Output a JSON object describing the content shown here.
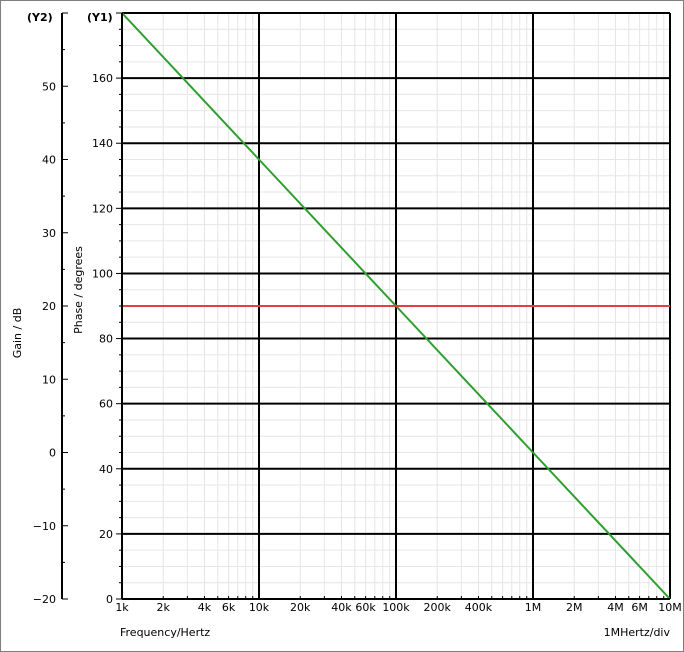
{
  "chart_data": {
    "type": "line",
    "title": "",
    "xlabel": "Frequency/Hertz",
    "x_scale": "log",
    "x_range_hz": [
      1000,
      10000000
    ],
    "x_tick_labels": [
      "1k",
      "2k",
      "4k",
      "6k",
      "10k",
      "20k",
      "40k",
      "60k",
      "100k",
      "200k",
      "400k",
      "1M",
      "2M",
      "4M",
      "6M",
      "10M"
    ],
    "x_tick_values": [
      1000,
      2000,
      4000,
      6000,
      10000,
      20000,
      40000,
      60000,
      100000,
      200000,
      400000,
      1000000,
      2000000,
      4000000,
      6000000,
      10000000
    ],
    "x_div_label": "1MHertz/div",
    "y1": {
      "axis_tag": "(Y1)",
      "label": "Phase / degrees",
      "range": [
        0,
        180
      ],
      "ticks": [
        0,
        20,
        40,
        60,
        80,
        100,
        120,
        140,
        160
      ]
    },
    "y2": {
      "axis_tag": "(Y2)",
      "label": "Gain / dB",
      "range": [
        -20,
        60
      ],
      "ticks": [
        -20,
        -10,
        0,
        10,
        20,
        30,
        40,
        50
      ]
    },
    "series": [
      {
        "axis": "y2",
        "color": "#2e9e2e",
        "x": [
          1000,
          10000,
          100000,
          1000000,
          10000000
        ],
        "y": [
          60,
          40,
          20,
          0,
          -20
        ]
      },
      {
        "axis": "y1",
        "color": "#e04040",
        "x": [
          1000,
          10000000
        ],
        "y": [
          90,
          90
        ]
      }
    ],
    "grid": true
  }
}
